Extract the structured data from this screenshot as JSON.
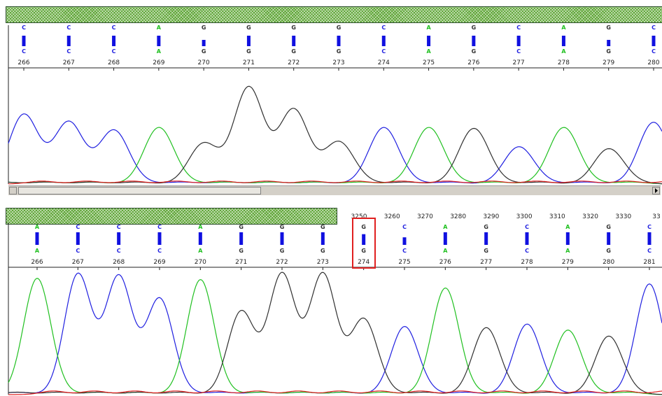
{
  "colors": {
    "A": "#20c020",
    "C": "#2020e0",
    "G": "#303030",
    "T": "#e02020",
    "bar": "#1010e0",
    "hatch": "#55a02a",
    "highlight": "#e02020"
  },
  "chart_data": [
    {
      "type": "line",
      "panel": "top",
      "bases": [
        {
          "pos": "266",
          "call": "C",
          "ref": "C",
          "q": 1.0
        },
        {
          "pos": "267",
          "call": "C",
          "ref": "C",
          "q": 1.0
        },
        {
          "pos": "268",
          "call": "C",
          "ref": "C",
          "q": 1.0
        },
        {
          "pos": "269",
          "call": "A",
          "ref": "A",
          "q": 1.0
        },
        {
          "pos": "270",
          "call": "G",
          "ref": "G",
          "q": 0.6
        },
        {
          "pos": "271",
          "call": "G",
          "ref": "G",
          "q": 1.0
        },
        {
          "pos": "272",
          "call": "G",
          "ref": "G",
          "q": 1.0
        },
        {
          "pos": "273",
          "call": "G",
          "ref": "G",
          "q": 1.0
        },
        {
          "pos": "274",
          "call": "C",
          "ref": "C",
          "q": 1.0
        },
        {
          "pos": "275",
          "call": "A",
          "ref": "A",
          "q": 1.0
        },
        {
          "pos": "276",
          "call": "G",
          "ref": "G",
          "q": 1.0
        },
        {
          "pos": "277",
          "call": "C",
          "ref": "C",
          "q": 1.0
        },
        {
          "pos": "278",
          "call": "A",
          "ref": "A",
          "q": 1.0
        },
        {
          "pos": "279",
          "call": "G",
          "ref": "G",
          "q": 0.6
        },
        {
          "pos": "280",
          "call": "C",
          "ref": "C",
          "q": 1.0
        }
      ],
      "peaks": [
        0.72,
        0.64,
        0.55,
        0.58,
        0.42,
        1.0,
        0.77,
        0.43,
        0.58,
        0.58,
        0.57,
        0.38,
        0.58,
        0.36,
        0.64
      ]
    },
    {
      "type": "line",
      "panel": "bottom",
      "ruler": [
        "3250",
        "3260",
        "3270",
        "3280",
        "3290",
        "3300",
        "3310",
        "3320",
        "3330",
        "33"
      ],
      "highlighted_pos": "274",
      "bases": [
        {
          "pos": "266",
          "call": "A",
          "ref": "A",
          "q": 1.0
        },
        {
          "pos": "267",
          "call": "C",
          "ref": "C",
          "q": 1.0
        },
        {
          "pos": "268",
          "call": "C",
          "ref": "C",
          "q": 1.0
        },
        {
          "pos": "269",
          "call": "C",
          "ref": "C",
          "q": 1.0
        },
        {
          "pos": "270",
          "call": "A",
          "ref": "A",
          "q": 1.0
        },
        {
          "pos": "271",
          "call": "G",
          "ref": "G",
          "q": 1.0
        },
        {
          "pos": "272",
          "call": "G",
          "ref": "G",
          "q": 1.0
        },
        {
          "pos": "273",
          "call": "G",
          "ref": "G",
          "q": 1.0
        },
        {
          "pos": "274",
          "call": "G",
          "ref": "G",
          "q": 0.85
        },
        {
          "pos": "275",
          "call": "C",
          "ref": "C",
          "q": 0.6
        },
        {
          "pos": "276",
          "call": "A",
          "ref": "A",
          "q": 1.0
        },
        {
          "pos": "277",
          "call": "G",
          "ref": "G",
          "q": 1.0
        },
        {
          "pos": "278",
          "call": "C",
          "ref": "C",
          "q": 1.0
        },
        {
          "pos": "279",
          "call": "A",
          "ref": "A",
          "q": 1.0
        },
        {
          "pos": "280",
          "call": "G",
          "ref": "G",
          "q": 1.0
        },
        {
          "pos": "281",
          "call": "C",
          "ref": "C",
          "q": 1.0
        }
      ],
      "peaks": [
        0.96,
        1.0,
        0.98,
        0.79,
        0.95,
        0.69,
        1.0,
        1.0,
        0.62,
        0.56,
        0.88,
        0.55,
        0.58,
        0.53,
        0.48,
        0.92
      ]
    }
  ]
}
